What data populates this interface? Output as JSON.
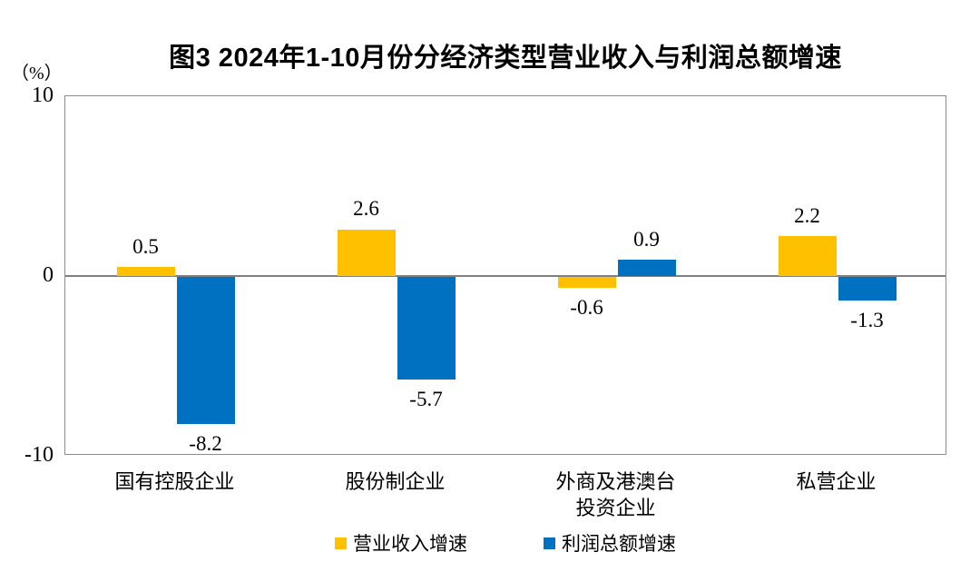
{
  "chart_data": {
    "type": "bar",
    "title": "图3  2024年1-10月份分经济类型营业收入与利润总额增速",
    "unit_label": "（%）",
    "categories": [
      "国有控股企业",
      "股份制企业",
      "外商及港澳台\n投资企业",
      "私营企业"
    ],
    "series": [
      {
        "name": "营业收入增速",
        "color": "#FFC000",
        "values": [
          0.5,
          2.6,
          -0.6,
          2.2
        ],
        "labels": [
          "0.5",
          "2.6",
          "-0.6",
          "2.2"
        ]
      },
      {
        "name": "利润总额增速",
        "color": "#0070C0",
        "values": [
          -8.2,
          -5.7,
          0.9,
          -1.3
        ],
        "labels": [
          "-8.2",
          "-5.7",
          "0.9",
          "-1.3"
        ]
      }
    ],
    "ylim": [
      -10,
      10
    ],
    "yticks": [
      "10",
      "0",
      "-10"
    ],
    "ytick_values": [
      10,
      0,
      -10
    ],
    "grid": false,
    "legend_position": "bottom",
    "axis_line_color": "#808080",
    "plot_border_color": "#8c8c8c",
    "background_color": "#ffffff",
    "text_color": "#000000"
  }
}
